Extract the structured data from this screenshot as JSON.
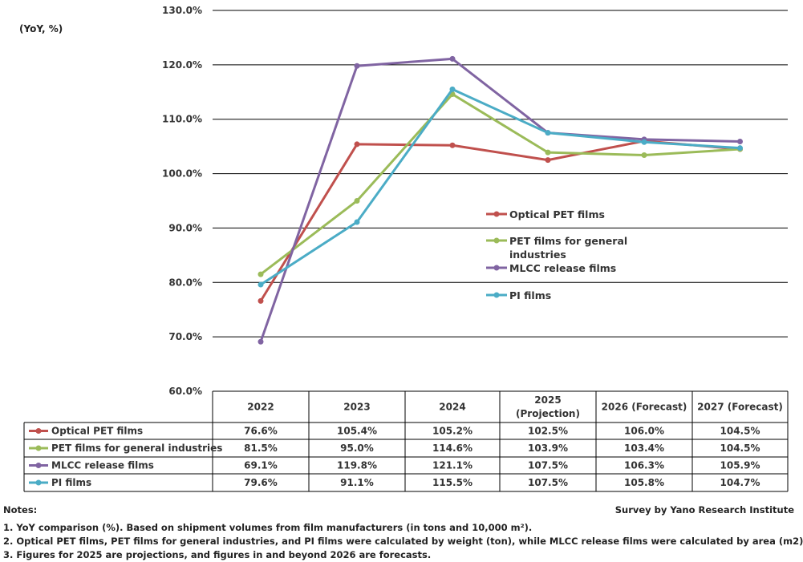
{
  "chart_data": {
    "type": "line",
    "unit_label": "(YoY, %)",
    "y_range": [
      60,
      130
    ],
    "y_ticks": [
      "60.0%",
      "70.0%",
      "80.0%",
      "90.0%",
      "100.0%",
      "110.0%",
      "120.0%",
      "130.0%"
    ],
    "categories": [
      "2022",
      "2023",
      "2024",
      "2025 (Projection)",
      "2026 (Forecast)",
      "2027 (Forecast)"
    ],
    "category_header_lines": [
      [
        "2022"
      ],
      [
        "2023"
      ],
      [
        "2024"
      ],
      [
        "2025",
        "(Projection)"
      ],
      [
        "2026 (Forecast)"
      ],
      [
        "2027 (Forecast)"
      ]
    ],
    "grid": "horizontal",
    "legend_position": "center-right",
    "series": [
      {
        "name": "Optical PET films",
        "legend_lines": [
          "Optical PET films"
        ],
        "color": "#c0504d",
        "values": [
          76.6,
          105.4,
          105.2,
          102.5,
          106.0,
          104.5
        ],
        "labels": [
          "76.6%",
          "105.4%",
          "105.2%",
          "102.5%",
          "106.0%",
          "104.5%"
        ]
      },
      {
        "name": "PET films for general industries",
        "legend_lines": [
          "PET films for general",
          "industries"
        ],
        "color": "#9bbb59",
        "values": [
          81.5,
          95.0,
          114.6,
          103.9,
          103.4,
          104.5
        ],
        "labels": [
          "81.5%",
          "95.0%",
          "114.6%",
          "103.9%",
          "103.4%",
          "104.5%"
        ]
      },
      {
        "name": "MLCC release films",
        "legend_lines": [
          "MLCC release films"
        ],
        "color": "#8064a2",
        "values": [
          69.1,
          119.8,
          121.1,
          107.5,
          106.3,
          105.9
        ],
        "labels": [
          "69.1%",
          "119.8%",
          "121.1%",
          "107.5%",
          "106.3%",
          "105.9%"
        ]
      },
      {
        "name": "PI films",
        "legend_lines": [
          "PI films"
        ],
        "color": "#4bacc6",
        "values": [
          79.6,
          91.1,
          115.5,
          107.5,
          105.8,
          104.7
        ],
        "labels": [
          "79.6%",
          "91.1%",
          "115.5%",
          "107.5%",
          "105.8%",
          "104.7%"
        ]
      }
    ]
  },
  "notes": {
    "header": "Notes:",
    "credit": "Survey by Yano Research Institute",
    "note1": "1.  YoY comparison (%). Based on shipment volumes from film manufacturers (in tons and 10,000 m²).",
    "note2": "2. Optical PET films, PET films for general industries, and PI films were calculated by weight (ton), while MLCC release films were calculated by area (m2)",
    "note3": "3. Figures for 2025 are projections, and figures in and beyond 2026 are forecasts."
  }
}
